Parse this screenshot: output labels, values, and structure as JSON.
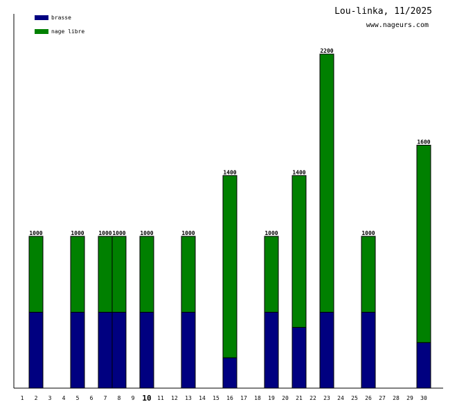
{
  "header": {
    "title": "Lou-linka, 11/2025",
    "subtitle": "www.nageurs.com"
  },
  "colors": {
    "brasse": "#000080",
    "nage_libre": "#008000",
    "axis": "#000000"
  },
  "chart_data": {
    "type": "bar",
    "stacked": true,
    "title": "Lou-linka, 11/2025",
    "x": [
      1,
      2,
      3,
      4,
      5,
      6,
      7,
      8,
      9,
      10,
      11,
      12,
      13,
      14,
      15,
      16,
      17,
      18,
      19,
      20,
      21,
      22,
      23,
      24,
      25,
      26,
      27,
      28,
      29,
      30
    ],
    "x_tick_labels": [
      "1",
      "2",
      "3",
      "4",
      "5",
      "6",
      "7",
      "8",
      "9",
      "10",
      "11",
      "12",
      "13",
      "14",
      "15",
      "16",
      "17",
      "18",
      "19",
      "20",
      "21",
      "22",
      "23",
      "24",
      "25",
      "26",
      "27",
      "28",
      "29",
      "30"
    ],
    "highlighted_tick": "10",
    "series": [
      {
        "name": "brasse",
        "color": "#000080",
        "values": [
          0,
          500,
          0,
          0,
          500,
          0,
          500,
          500,
          0,
          500,
          0,
          0,
          500,
          0,
          0,
          200,
          0,
          0,
          500,
          0,
          400,
          0,
          500,
          0,
          0,
          500,
          0,
          0,
          0,
          300
        ]
      },
      {
        "name": "nage libre",
        "color": "#008000",
        "values": [
          0,
          500,
          0,
          0,
          500,
          0,
          500,
          500,
          0,
          500,
          0,
          0,
          500,
          0,
          0,
          1200,
          0,
          0,
          500,
          0,
          1000,
          0,
          1700,
          0,
          0,
          500,
          0,
          0,
          0,
          1300
        ]
      }
    ],
    "totals": [
      0,
      1000,
      0,
      0,
      1000,
      0,
      1000,
      1000,
      0,
      1000,
      0,
      0,
      1000,
      0,
      0,
      1400,
      0,
      0,
      1000,
      0,
      1400,
      0,
      2200,
      0,
      0,
      1000,
      0,
      0,
      0,
      1600
    ],
    "ylim": [
      0,
      2200
    ],
    "grid": false,
    "legend_position": "top-left"
  }
}
